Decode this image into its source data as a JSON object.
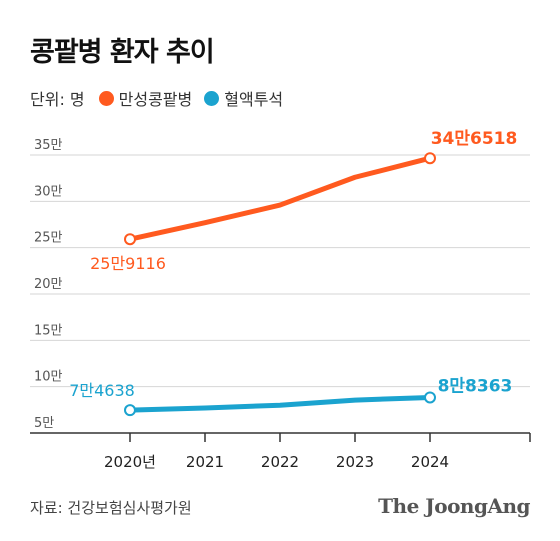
{
  "title": "콩팥병 환자 추이",
  "legend": {
    "unit_label": "단위: 명",
    "items": [
      {
        "label": "만성콩팥병",
        "color": "#ff5a1f"
      },
      {
        "label": "혈액투석",
        "color": "#1ba3cf"
      }
    ]
  },
  "source": "자료: 건강보험심사평가원",
  "brand": "The JoongAng",
  "chart_data": {
    "type": "line",
    "x": [
      "2020년",
      "2021",
      "2022",
      "2023",
      "2024"
    ],
    "y_ticks": [
      {
        "value": 50000,
        "label": "5만"
      },
      {
        "value": 100000,
        "label": "10만"
      },
      {
        "value": 150000,
        "label": "15만"
      },
      {
        "value": 200000,
        "label": "20만"
      },
      {
        "value": 250000,
        "label": "25만"
      },
      {
        "value": 300000,
        "label": "30만"
      },
      {
        "value": 350000,
        "label": "35만"
      }
    ],
    "ylim": [
      50000,
      350000
    ],
    "grid": true,
    "series": [
      {
        "name": "만성콩팥병",
        "color": "#ff5a1f",
        "values": [
          259116,
          277000,
          296000,
          326000,
          346518
        ],
        "start_label": "25만9116",
        "end_label": "34만6518"
      },
      {
        "name": "혈액투석",
        "color": "#1ba3cf",
        "values": [
          74638,
          77000,
          80000,
          85500,
          88363
        ],
        "start_label": "7만4638",
        "end_label": "8만8363"
      }
    ]
  }
}
